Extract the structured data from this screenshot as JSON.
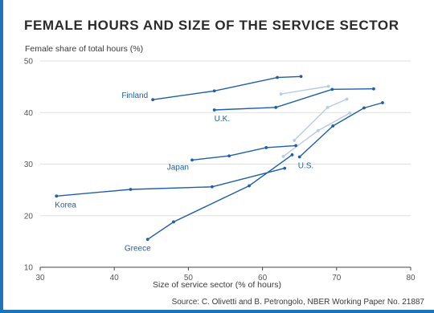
{
  "chart_data": {
    "type": "line",
    "title": "FEMALE HOURS AND SIZE OF THE SERVICE SECTOR",
    "ylabel": "Female share of total hours (%)",
    "xlabel": "Size of service sector (% of hours)",
    "source": "Source: C. Olivetti and B. Petrongolo, NBER Working Paper No. 21887",
    "xlim": [
      30,
      80
    ],
    "ylim": [
      10,
      50
    ],
    "x_ticks": [
      30,
      40,
      50,
      60,
      70,
      80
    ],
    "y_ticks": [
      10,
      20,
      30,
      40,
      50
    ],
    "grid": "horizontal",
    "colors": {
      "highlight": "#1f5fa8",
      "muted": "#b6cbe6",
      "grid": "#e0e0e0",
      "frame": "#1f73b7"
    },
    "series": [
      {
        "name": "Finland",
        "style": "highlight",
        "points": [
          [
            45.2,
            42.5
          ],
          [
            53.5,
            44.2
          ],
          [
            62.0,
            46.8
          ],
          [
            65.2,
            47.0
          ]
        ]
      },
      {
        "name": "U.K.",
        "style": "highlight",
        "points": [
          [
            53.5,
            40.5
          ],
          [
            61.8,
            41.0
          ],
          [
            69.4,
            44.5
          ],
          [
            75.0,
            44.6
          ]
        ]
      },
      {
        "name": "Japan",
        "style": "highlight",
        "points": [
          [
            50.5,
            30.8
          ],
          [
            55.5,
            31.6
          ],
          [
            60.5,
            33.2
          ],
          [
            64.5,
            33.6
          ]
        ]
      },
      {
        "name": "U.S.",
        "style": "highlight",
        "points": [
          [
            65.0,
            31.4
          ],
          [
            69.5,
            37.4
          ],
          [
            73.7,
            40.9
          ],
          [
            76.2,
            41.9
          ]
        ]
      },
      {
        "name": "Korea",
        "style": "highlight",
        "points": [
          [
            32.2,
            23.8
          ],
          [
            42.2,
            25.1
          ],
          [
            53.2,
            25.6
          ],
          [
            63.0,
            29.2
          ]
        ]
      },
      {
        "name": "Greece",
        "style": "highlight",
        "points": [
          [
            44.5,
            15.4
          ],
          [
            48.0,
            18.8
          ],
          [
            58.2,
            25.8
          ],
          [
            64.0,
            31.8
          ]
        ]
      },
      {
        "name": "",
        "style": "muted",
        "points": [
          [
            62.5,
            43.6
          ],
          [
            68.9,
            45.1
          ]
        ]
      },
      {
        "name": "",
        "style": "muted",
        "points": [
          [
            64.3,
            34.6
          ],
          [
            68.8,
            41.0
          ],
          [
            71.4,
            42.6
          ]
        ]
      },
      {
        "name": "",
        "style": "muted",
        "points": [
          [
            62.8,
            31.5
          ],
          [
            67.5,
            36.5
          ],
          [
            71.8,
            39.9
          ]
        ]
      }
    ]
  }
}
